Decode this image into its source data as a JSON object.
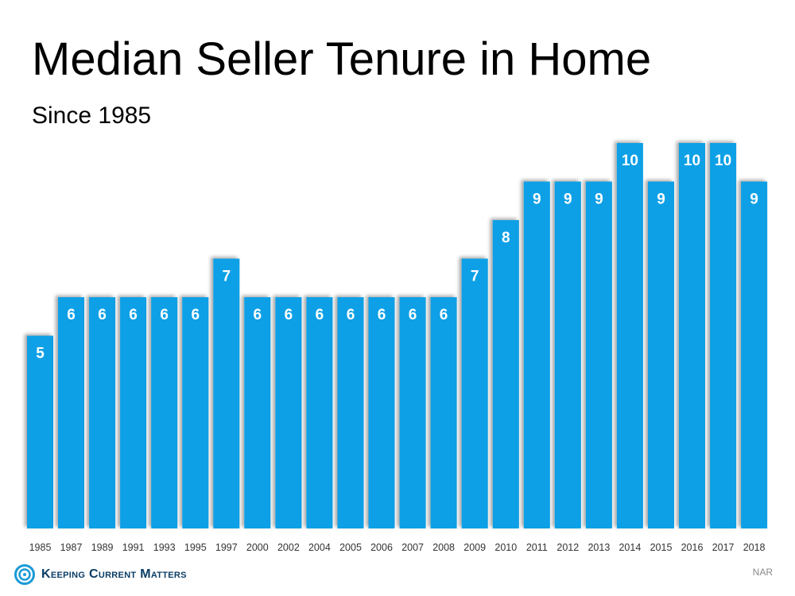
{
  "header": {
    "title": "Median Seller Tenure in Home",
    "subtitle": "Since 1985"
  },
  "footer": {
    "brand": "Keeping Current Matters",
    "source": "NAR"
  },
  "colors": {
    "bar": "#0aa0e6",
    "label": "#ffffff"
  },
  "chart_data": {
    "type": "bar",
    "title": "Median Seller Tenure in Home",
    "subtitle": "Since 1985",
    "categories": [
      "1985",
      "1987",
      "1989",
      "1991",
      "1993",
      "1995",
      "1997",
      "2000",
      "2002",
      "2004",
      "2005",
      "2006",
      "2007",
      "2008",
      "2009",
      "2010",
      "2011",
      "2012",
      "2013",
      "2014",
      "2015",
      "2016",
      "2017",
      "2018"
    ],
    "values": [
      5,
      6,
      6,
      6,
      6,
      6,
      7,
      6,
      6,
      6,
      6,
      6,
      6,
      6,
      7,
      8,
      9,
      9,
      9,
      10,
      9,
      10,
      10,
      9
    ],
    "xlabel": "",
    "ylabel": "",
    "ylim": [
      0,
      10
    ],
    "data_labels": true,
    "grid": false,
    "legend": "none"
  }
}
